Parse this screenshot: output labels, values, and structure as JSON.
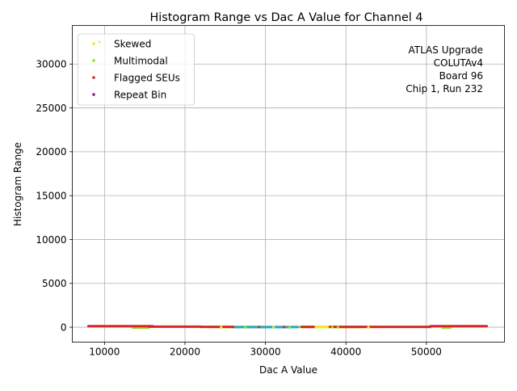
{
  "chart_data": {
    "type": "scatter",
    "title": "Histogram Range vs Dac A Value for Channel 4",
    "xlabel": "Dac A Value",
    "ylabel": "Histogram Range",
    "xlim": [
      6000,
      59700
    ],
    "ylim": [
      -1700,
      34400
    ],
    "xticks": [
      10000,
      20000,
      30000,
      40000,
      50000
    ],
    "yticks": [
      0,
      5000,
      10000,
      15000,
      20000,
      25000,
      30000
    ],
    "grid": true,
    "legend_position": "top-left",
    "annotation": [
      "ATLAS Upgrade",
      "COLUTAv4",
      "Board 96",
      "Chip 1, Run 232"
    ],
    "series": [
      {
        "name": "Skewed",
        "color": "#f4e81c",
        "segments": [
          [
            22000,
            30000,
            40
          ],
          [
            36000,
            44000,
            40
          ]
        ]
      },
      {
        "name": "Multimodal",
        "color": "#8fe318",
        "segments": [
          [
            13500,
            15500,
            -40
          ],
          [
            24000,
            42000,
            30
          ],
          [
            52000,
            53000,
            -40
          ]
        ]
      },
      {
        "name": "Flagged SEUs",
        "color": "#d62728",
        "segments": [
          [
            8000,
            16000,
            120
          ],
          [
            15500,
            22000,
            60
          ],
          [
            22000,
            26000,
            40
          ],
          [
            34500,
            36000,
            40
          ],
          [
            38000,
            50500,
            40
          ],
          [
            50500,
            57500,
            120
          ]
        ]
      },
      {
        "name": "Repeat Bin",
        "color": "#7b1e7a",
        "segments": []
      },
      {
        "name": "",
        "color": "#23a9d8",
        "segments": [
          [
            26000,
            34000,
            10
          ]
        ]
      }
    ]
  }
}
